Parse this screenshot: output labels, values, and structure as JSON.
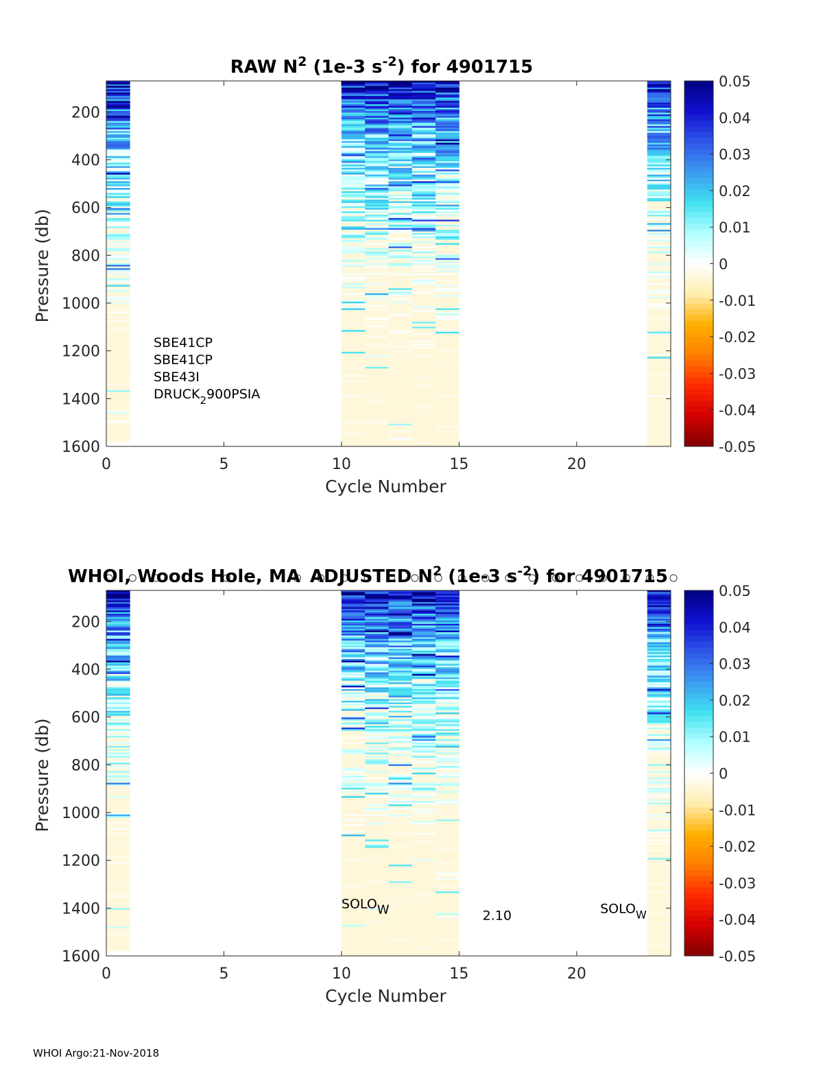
{
  "footer": "WHOI Argo:21-Nov-2018",
  "colors": {
    "axis": "#262626",
    "colormap": [
      "#800000",
      "#d40000",
      "#ff2a00",
      "#ff7f00",
      "#ffb000",
      "#ffeeb0",
      "#ffffff",
      "#b0ffff",
      "#40e0f0",
      "#3c9bf0",
      "#2f55e8",
      "#1010d0",
      "#000080"
    ]
  },
  "chart_data": [
    {
      "type": "heatmap",
      "title_main": "RAW N",
      "title_sup": "2",
      "title_mid": " (1e-3 s",
      "title_sup2": "-2",
      "title_end": ") for 4901715",
      "xlabel": "Cycle Number",
      "ylabel": "Pressure (db)",
      "xlim": [
        0,
        24
      ],
      "ylim": [
        70,
        1600
      ],
      "x_ticks": [
        "0",
        "5",
        "10",
        "15",
        "20"
      ],
      "y_ticks": [
        "200",
        "400",
        "600",
        "800",
        "1000",
        "1200",
        "1400",
        "1600"
      ],
      "colorbar_ticks": [
        "0.05",
        "0.04",
        "0.03",
        "0.02",
        "0.01",
        "0",
        "-0.01",
        "-0.02",
        "-0.03",
        "-0.04",
        "-0.05"
      ],
      "clim": [
        -0.05,
        0.05
      ],
      "columns": [
        {
          "cycle": 0,
          "max_pressure": 1580
        },
        {
          "cycle": 10,
          "max_pressure": 1600
        },
        {
          "cycle": 11,
          "max_pressure": 1600
        },
        {
          "cycle": 12,
          "max_pressure": 1600
        },
        {
          "cycle": 13,
          "max_pressure": 1600
        },
        {
          "cycle": 14,
          "max_pressure": 1600
        },
        {
          "cycle": 23,
          "max_pressure": 1600
        }
      ],
      "sensors": [
        "SBE41CP",
        "SBE41CP",
        "SBE43I",
        "DRUCK",
        "2",
        "900PSIA"
      ]
    },
    {
      "type": "heatmap",
      "title_prefix": "WHOI, Woods Hole, MA",
      "title_main": "ADJUSTED N",
      "title_sup": "2",
      "title_mid": " (1e-3 s",
      "title_sup2": "-2",
      "title_end": ") for 4901715",
      "xlabel": "Cycle Number",
      "ylabel": "Pressure (db)",
      "xlim": [
        0,
        24
      ],
      "ylim": [
        70,
        1600
      ],
      "x_ticks": [
        "0",
        "5",
        "10",
        "15",
        "20"
      ],
      "y_ticks": [
        "200",
        "400",
        "600",
        "800",
        "1000",
        "1200",
        "1400",
        "1600"
      ],
      "colorbar_ticks": [
        "0.05",
        "0.04",
        "0.03",
        "0.02",
        "0.01",
        "0",
        "-0.01",
        "-0.02",
        "-0.03",
        "-0.04",
        "-0.05"
      ],
      "clim": [
        -0.05,
        0.05
      ],
      "columns": [
        {
          "cycle": 0,
          "max_pressure": 1580
        },
        {
          "cycle": 10,
          "max_pressure": 1600
        },
        {
          "cycle": 11,
          "max_pressure": 1600
        },
        {
          "cycle": 12,
          "max_pressure": 1600
        },
        {
          "cycle": 13,
          "max_pressure": 1600
        },
        {
          "cycle": 14,
          "max_pressure": 1600
        },
        {
          "cycle": 23,
          "max_pressure": 1600
        }
      ],
      "annotations": [
        {
          "text": "SOLO",
          "sub": "W",
          "cycle": 10,
          "pressure": 1400
        },
        {
          "text": "2.10",
          "cycle": 16,
          "pressure": 1450
        },
        {
          "text": "SOLO",
          "sub": "W",
          "cycle": 21,
          "pressure": 1420
        }
      ],
      "marker_cycles": [
        0,
        1,
        2,
        5,
        8,
        9,
        10,
        11,
        12,
        13,
        14,
        15,
        16,
        17,
        18,
        19,
        20,
        21,
        22,
        23,
        24
      ]
    }
  ]
}
